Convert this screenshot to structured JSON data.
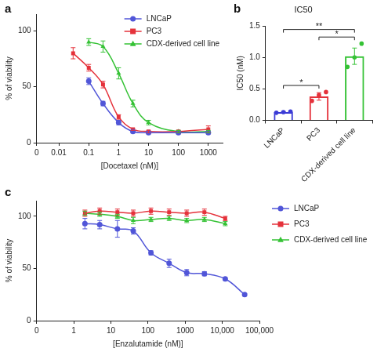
{
  "chart_data": [
    {
      "panel_label": "a",
      "type": "line",
      "x_label": "[Docetaxel (nM)]",
      "y_label": "% of viability",
      "log": "x",
      "grid": false,
      "legend": "upper right",
      "xlim": [
        0.0018,
        3000
      ],
      "xticks": [
        {
          "value": 0.0018,
          "label": "0"
        },
        0.01,
        0.1,
        1,
        10,
        100,
        1000
      ],
      "ylim": [
        0,
        115
      ],
      "yticks": [
        0,
        50,
        100
      ],
      "series": [
        {
          "name": "LNCaP",
          "color": "#5156d8",
          "marker": "circle",
          "x": [
            0.1,
            0.3,
            1,
            3,
            10,
            100,
            1000
          ],
          "values": [
            55,
            35,
            18,
            10,
            9,
            9,
            9
          ],
          "errors": [
            3,
            2,
            2,
            1,
            1,
            1,
            1
          ]
        },
        {
          "name": "PC3",
          "color": "#e5323b",
          "marker": "square",
          "x": [
            0.03,
            0.1,
            0.3,
            1,
            3,
            10,
            100,
            1000
          ],
          "values": [
            80,
            67,
            52,
            23,
            12,
            10,
            10,
            12
          ],
          "errors": [
            5,
            3,
            3,
            2,
            1,
            1,
            1,
            3
          ]
        },
        {
          "name": "CDX-derived cell line",
          "color": "#35c235",
          "marker": "triangle",
          "x": [
            0.1,
            0.3,
            1,
            3,
            10,
            100,
            1000
          ],
          "values": [
            90,
            86,
            62,
            35,
            18,
            10,
            10
          ],
          "errors": [
            3,
            5,
            5,
            3,
            2,
            1,
            1
          ]
        }
      ]
    },
    {
      "panel_label": "b",
      "type": "bar",
      "title": "IC50",
      "y_label": "IC50 (nM)",
      "grid": false,
      "categories": [
        "LNCaP",
        "PC3",
        "CDX-derived cell line"
      ],
      "values": [
        0.13,
        0.38,
        1.02
      ],
      "errors": [
        0.01,
        0.06,
        0.13
      ],
      "points": [
        [
          0.12,
          0.13,
          0.14
        ],
        [
          0.31,
          0.4,
          0.45
        ],
        [
          0.85,
          1.0,
          1.22
        ]
      ],
      "colors": [
        "#3b3bd6",
        "#e5323b",
        "#35c235"
      ],
      "ylim": [
        0,
        1.5
      ],
      "yticks": [
        {
          "value": 0,
          "label": "0.0"
        },
        {
          "value": 0.5,
          "label": "0.5"
        },
        {
          "value": 1,
          "label": "1.0"
        },
        {
          "value": 1.5,
          "label": "1.5"
        }
      ],
      "significance": [
        {
          "between": [
            "LNCaP",
            "PC3"
          ],
          "label": "*"
        },
        {
          "between": [
            "PC3",
            "CDX-derived cell line"
          ],
          "label": "*"
        },
        {
          "between": [
            "LNCaP",
            "CDX-derived cell line"
          ],
          "label": "**"
        }
      ]
    },
    {
      "panel_label": "c",
      "type": "line",
      "x_label": "[Enzalutamide (nM)]",
      "y_label": "% of viability",
      "log": "x",
      "grid": false,
      "legend": "right",
      "xlim": [
        0.1,
        100000
      ],
      "xticks": [
        {
          "value": 0.1,
          "label": "0"
        },
        1,
        10,
        100,
        1000,
        {
          "value": 10000,
          "label": "10,000"
        },
        {
          "value": 100000,
          "label": "100,000"
        }
      ],
      "ylim": [
        0,
        115
      ],
      "yticks": [
        0,
        50,
        100
      ],
      "series": [
        {
          "name": "LNCaP",
          "color": "#5156d8",
          "marker": "circle",
          "x": [
            2,
            5,
            15,
            40,
            120,
            370,
            1100,
            3300,
            12000,
            40000
          ],
          "values": [
            93,
            92,
            88,
            86,
            65,
            55,
            46,
            45,
            40,
            25
          ],
          "errors": [
            5,
            4,
            8,
            3,
            2,
            4,
            3,
            2,
            1,
            1
          ]
        },
        {
          "name": "PC3",
          "color": "#e5323b",
          "marker": "square",
          "x": [
            2,
            5,
            15,
            40,
            120,
            370,
            1100,
            3300,
            12000
          ],
          "values": [
            103,
            105,
            104,
            103,
            105,
            104,
            103,
            104,
            98
          ],
          "errors": [
            3,
            3,
            3,
            3,
            3,
            3,
            3,
            3,
            2
          ]
        },
        {
          "name": "CDX-derived cell line",
          "color": "#35c235",
          "marker": "triangle",
          "x": [
            2,
            5,
            15,
            40,
            120,
            370,
            1100,
            3300,
            12000
          ],
          "values": [
            103,
            102,
            100,
            96,
            97,
            98,
            96,
            97,
            93
          ],
          "errors": [
            2,
            2,
            2,
            3,
            2,
            2,
            2,
            2,
            2
          ]
        }
      ]
    }
  ]
}
